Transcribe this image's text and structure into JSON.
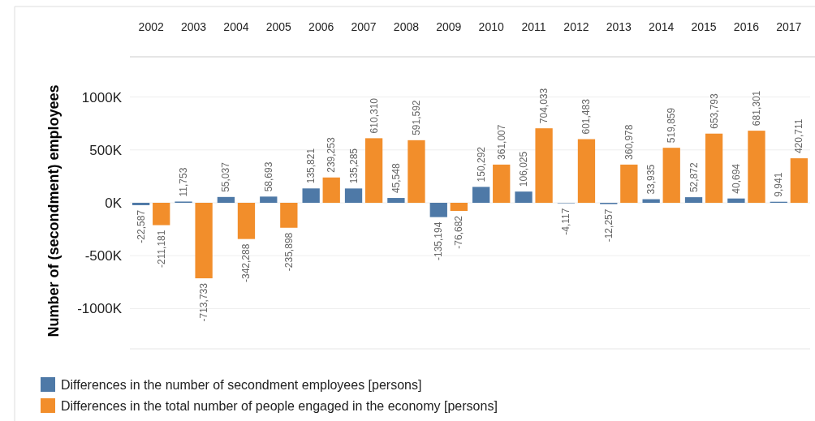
{
  "chart_data": {
    "type": "bar",
    "ylabel": "Number of (secondment) employees",
    "categories": [
      "2002",
      "2003",
      "2004",
      "2005",
      "2006",
      "2007",
      "2008",
      "2009",
      "2010",
      "2011",
      "2012",
      "2013",
      "2014",
      "2015",
      "2016",
      "2017"
    ],
    "series": [
      {
        "name": "Differences in the number of secondment employees [persons]",
        "color": "#4e79a7",
        "values": [
          -22587,
          11753,
          55037,
          58693,
          135821,
          135285,
          45548,
          -135194,
          150292,
          106025,
          -4117,
          -12257,
          33935,
          52872,
          40694,
          9941
        ],
        "value_labels": [
          "-22,587",
          "11,753",
          "55,037",
          "58,693",
          "135,821",
          "135,285",
          "45,548",
          "-135,194",
          "150,292",
          "106,025",
          "-4,117",
          "-12,257",
          "33,935",
          "52,872",
          "40,694",
          "9,941"
        ]
      },
      {
        "name": "Differences in the total number of people engaged in the economy [persons]",
        "color": "#f28e2b",
        "values": [
          -211181,
          -713733,
          -342288,
          -235898,
          239253,
          610310,
          591592,
          -76682,
          361007,
          704033,
          601483,
          360978,
          519859,
          653793,
          681301,
          420711
        ],
        "value_labels": [
          "-211,181",
          "-713,733",
          "-342,288",
          "-235,898",
          "239,253",
          "610,310",
          "591,592",
          "-76,682",
          "361,007",
          "704,033",
          "601,483",
          "360,978",
          "519,859",
          "653,793",
          "681,301",
          "420,711"
        ]
      }
    ],
    "ylim": [
      -1380000,
      1380000
    ],
    "yticks": [
      {
        "value": -1000000,
        "label": "-1000K"
      },
      {
        "value": -500000,
        "label": "-500K"
      },
      {
        "value": 0,
        "label": "0K"
      },
      {
        "value": 500000,
        "label": "500K"
      },
      {
        "value": 1000000,
        "label": "1000K"
      }
    ],
    "grid": "y",
    "legend": "bottom left"
  }
}
